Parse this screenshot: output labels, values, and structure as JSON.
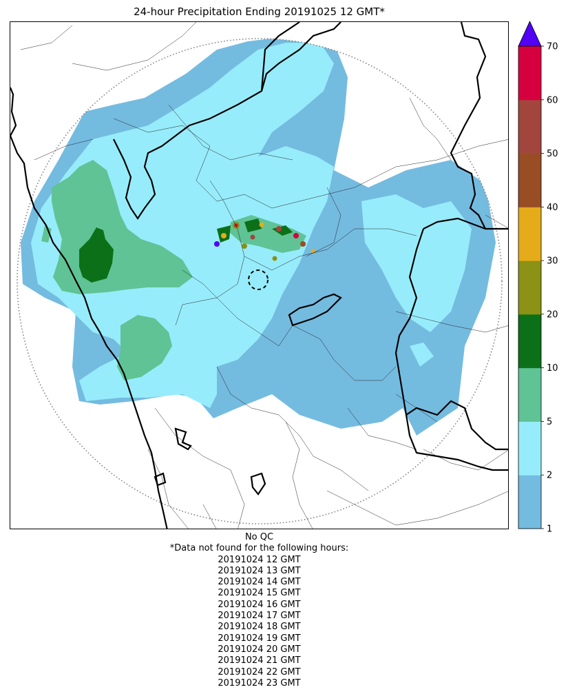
{
  "title": "24-hour Precipitation Ending 20191025 12 GMT*",
  "colorbar": {
    "ticks": [
      "1",
      "2",
      "5",
      "10",
      "20",
      "30",
      "40",
      "50",
      "60",
      "70"
    ],
    "colors": [
      "#74bbe0",
      "#97ecfb",
      "#5fc395",
      "#0b7018",
      "#8b9215",
      "#e6ab1b",
      "#984d25",
      "#a2463d",
      "#d7003f"
    ],
    "extend_color": "#5201f4"
  },
  "notes": {
    "qc": "No QC",
    "missing_header": "*Data not found for the following hours:",
    "missing_hours": [
      "20191024 12 GMT",
      "20191024 13 GMT",
      "20191024 14 GMT",
      "20191024 15 GMT",
      "20191024 16 GMT",
      "20191024 17 GMT",
      "20191024 18 GMT",
      "20191024 19 GMT",
      "20191024 20 GMT",
      "20191024 21 GMT",
      "20191024 22 GMT",
      "20191024 23 GMT"
    ]
  }
}
